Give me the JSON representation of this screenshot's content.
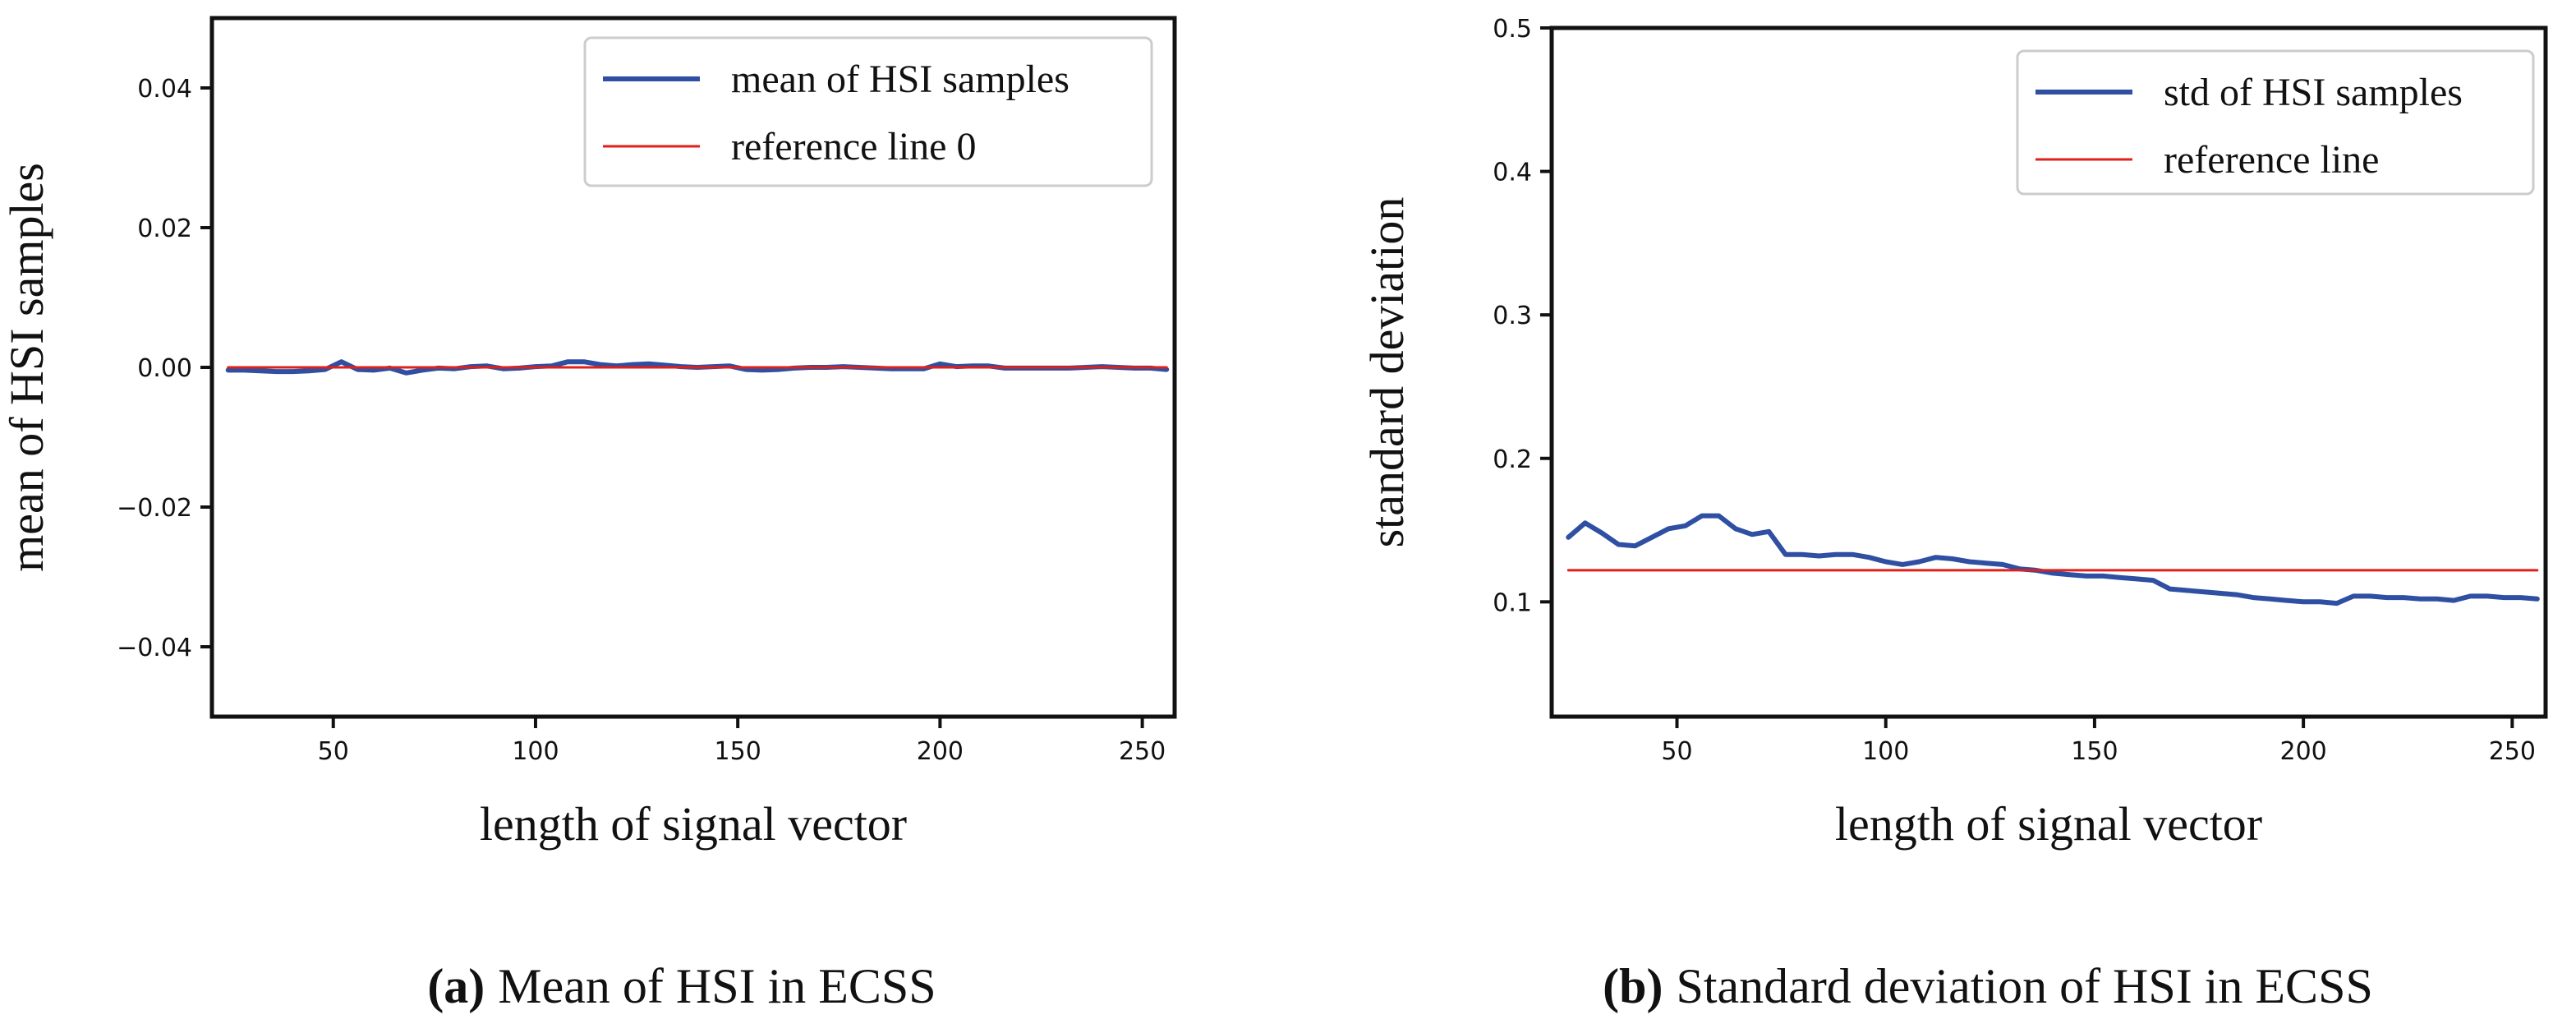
{
  "colors": {
    "series": "#2f4fa3",
    "reference": "#e0201b",
    "axis": "#111111"
  },
  "chart_data": [
    {
      "type": "line",
      "xlabel": "length of signal vector",
      "ylabel": "mean of HSI samples",
      "xlim": [
        20,
        258
      ],
      "ylim": [
        -0.05,
        0.05
      ],
      "xticks": [
        50,
        100,
        150,
        200,
        250
      ],
      "xtick_labels": [
        "50",
        "100",
        "150",
        "200",
        "250"
      ],
      "yticks": [
        -0.04,
        -0.02,
        0.0,
        0.02,
        0.04
      ],
      "ytick_labels": [
        "−0.04",
        "−0.02",
        "0.00",
        "0.02",
        "0.04"
      ],
      "legend_position": "top-right",
      "series": [
        {
          "name": "mean of HSI samples",
          "style": "thick",
          "x": [
            24,
            28,
            32,
            36,
            40,
            44,
            48,
            52,
            56,
            60,
            64,
            68,
            72,
            76,
            80,
            84,
            88,
            92,
            96,
            100,
            104,
            108,
            112,
            116,
            120,
            124,
            128,
            132,
            136,
            140,
            144,
            148,
            152,
            156,
            160,
            164,
            168,
            172,
            176,
            180,
            184,
            188,
            192,
            196,
            200,
            204,
            208,
            212,
            216,
            220,
            224,
            228,
            232,
            236,
            240,
            244,
            248,
            252,
            256
          ],
          "y": [
            -0.0004,
            -0.0004,
            -0.0005,
            -0.0006,
            -0.0006,
            -0.0005,
            -0.0003,
            0.0008,
            -0.0003,
            -0.0004,
            -0.0001,
            -0.0008,
            -0.0004,
            -0.0001,
            -0.0002,
            0.0001,
            0.0002,
            -0.0002,
            -0.0001,
            0.0001,
            0.0002,
            0.0008,
            0.0008,
            0.0004,
            0.0002,
            0.0004,
            0.0005,
            0.0003,
            0.0001,
            0.0,
            0.0001,
            0.0002,
            -0.0003,
            -0.0004,
            -0.0003,
            -0.0001,
            0.0,
            0.0,
            0.0001,
            0.0,
            -0.0001,
            -0.0002,
            -0.0002,
            -0.0002,
            0.0005,
            0.0001,
            0.0002,
            0.0002,
            -0.0001,
            -0.0001,
            -0.0001,
            -0.0001,
            -0.0001,
            0.0,
            0.0001,
            0.0,
            -0.0001,
            -0.0001,
            -0.0003
          ]
        },
        {
          "name": "reference line 0",
          "style": "thin",
          "x": [
            24,
            256
          ],
          "y": [
            0.0,
            0.0
          ]
        }
      ],
      "caption_letter": "(a)",
      "caption_text": "Mean of HSI in ECSS"
    },
    {
      "type": "line",
      "xlabel": "length of signal vector",
      "ylabel": "standard deviation",
      "xlim": [
        20,
        258
      ],
      "ylim": [
        0.02,
        0.5
      ],
      "xticks": [
        50,
        100,
        150,
        200,
        250
      ],
      "xtick_labels": [
        "50",
        "100",
        "150",
        "200",
        "250"
      ],
      "yticks": [
        0.1,
        0.2,
        0.3,
        0.4,
        0.5
      ],
      "ytick_labels": [
        "0.1",
        "0.2",
        "0.3",
        "0.4",
        "0.5"
      ],
      "legend_position": "top-right",
      "series": [
        {
          "name": "std of HSI samples",
          "style": "thick",
          "x": [
            24,
            28,
            32,
            36,
            40,
            44,
            48,
            52,
            56,
            60,
            64,
            68,
            72,
            76,
            80,
            84,
            88,
            92,
            96,
            100,
            104,
            108,
            112,
            116,
            120,
            124,
            128,
            132,
            136,
            140,
            144,
            148,
            152,
            156,
            160,
            164,
            168,
            172,
            176,
            180,
            184,
            188,
            192,
            196,
            200,
            204,
            208,
            212,
            216,
            220,
            224,
            228,
            232,
            236,
            240,
            244,
            248,
            252,
            256
          ],
          "y": [
            0.145,
            0.155,
            0.148,
            0.14,
            0.139,
            0.145,
            0.151,
            0.153,
            0.16,
            0.16,
            0.151,
            0.147,
            0.149,
            0.133,
            0.133,
            0.132,
            0.133,
            0.133,
            0.131,
            0.128,
            0.126,
            0.128,
            0.131,
            0.13,
            0.128,
            0.127,
            0.126,
            0.123,
            0.122,
            0.12,
            0.119,
            0.118,
            0.118,
            0.117,
            0.116,
            0.115,
            0.109,
            0.108,
            0.107,
            0.106,
            0.105,
            0.103,
            0.102,
            0.101,
            0.1,
            0.1,
            0.099,
            0.104,
            0.104,
            0.103,
            0.103,
            0.102,
            0.102,
            0.101,
            0.104,
            0.104,
            0.103,
            0.103,
            0.102
          ]
        },
        {
          "name": "reference line",
          "style": "thin",
          "x": [
            24,
            256
          ],
          "y": [
            0.122,
            0.122
          ]
        }
      ],
      "caption_letter": "(b)",
      "caption_text": "Standard deviation of HSI in ECSS"
    }
  ]
}
